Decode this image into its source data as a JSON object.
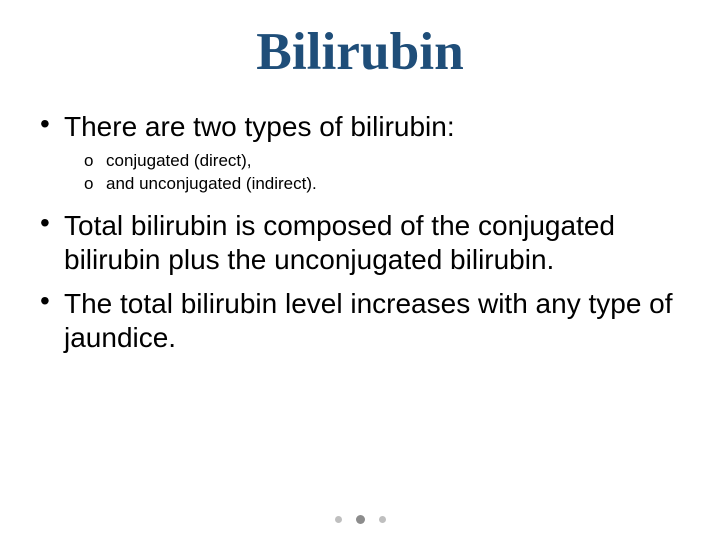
{
  "title": {
    "text": "Bilirubin",
    "color": "#1f4e79",
    "font_family": "Times New Roman",
    "font_weight": 700,
    "fontsize_pt": 40
  },
  "bullets": [
    {
      "text": "There are two types of bilirubin:",
      "sub": [
        {
          "text": "conjugated (direct),"
        },
        {
          "text": "and unconjugated (indirect)."
        }
      ]
    },
    {
      "text": "Total bilirubin is composed of the conjugated bilirubin plus the unconjugated bilirubin.",
      "sub": []
    },
    {
      "text": "The total bilirubin level increases with any type of jaundice.",
      "sub": []
    }
  ],
  "typography": {
    "level1_fontsize_pt": 21,
    "level2_fontsize_pt": 13,
    "body_color": "#000000",
    "background_color": "#ffffff"
  },
  "pager": {
    "dot_color": "#bfbfbf",
    "active_dot_color": "#8c8c8c",
    "count": 3,
    "active_index": 1
  }
}
